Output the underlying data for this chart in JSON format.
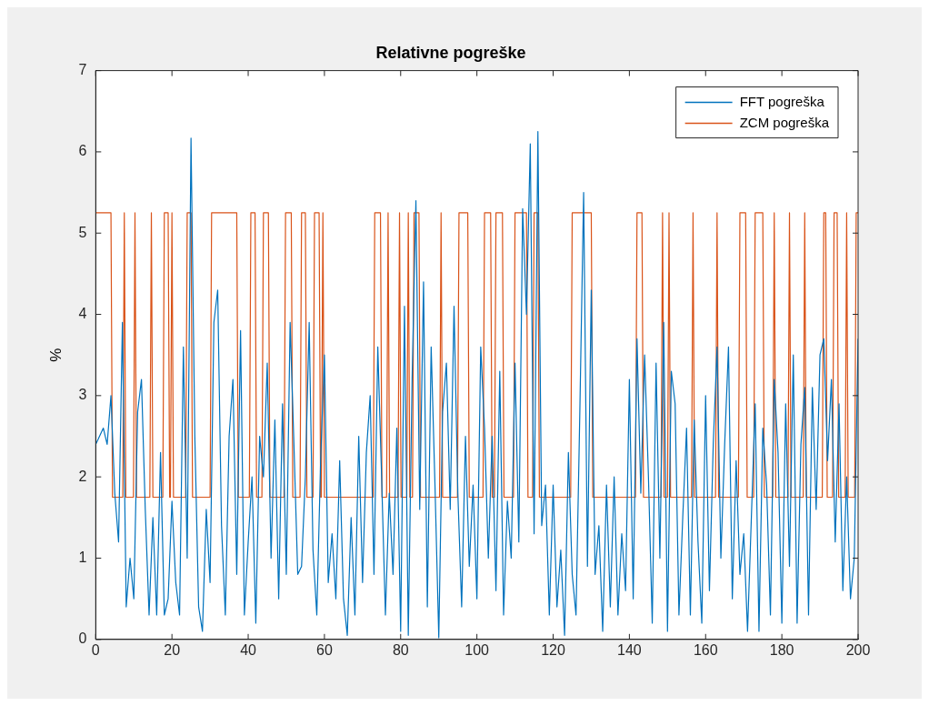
{
  "chart_data": {
    "type": "line",
    "title": "Relativne pogreške",
    "ylabel": "%",
    "xlim": [
      0,
      200
    ],
    "ylim": [
      0,
      7
    ],
    "xticks": [
      0,
      20,
      40,
      60,
      80,
      100,
      120,
      140,
      160,
      180,
      200
    ],
    "yticks": [
      0,
      1,
      2,
      3,
      4,
      5,
      6,
      7
    ],
    "grid": false,
    "legend": "top right",
    "marker": "none",
    "series": [
      {
        "name": "FFT pogreška",
        "color": "#0072bd",
        "x": [
          0,
          1,
          2,
          3,
          4,
          5,
          6,
          7,
          8,
          9,
          10,
          11,
          12,
          13,
          14,
          15,
          16,
          17,
          18,
          19,
          20,
          21,
          22,
          23,
          24,
          25,
          26,
          27,
          28,
          29,
          30,
          31,
          32,
          33,
          34,
          35,
          36,
          37,
          38,
          39,
          40,
          41,
          42,
          43,
          44,
          45,
          46,
          47,
          48,
          49,
          50,
          51,
          52,
          53,
          54,
          55,
          56,
          57,
          58,
          59,
          60,
          61,
          62,
          63,
          64,
          65,
          66,
          67,
          68,
          69,
          70,
          71,
          72,
          73,
          74,
          75,
          76,
          77,
          78,
          79,
          80,
          81,
          82,
          83,
          84,
          85,
          86,
          87,
          88,
          89,
          90,
          91,
          92,
          93,
          94,
          95,
          96,
          97,
          98,
          99,
          100,
          101,
          102,
          103,
          104,
          105,
          106,
          107,
          108,
          109,
          110,
          111,
          112,
          113,
          114,
          115,
          116,
          117,
          118,
          119,
          120,
          121,
          122,
          123,
          124,
          125,
          126,
          127,
          128,
          129,
          130,
          131,
          132,
          133,
          134,
          135,
          136,
          137,
          138,
          139,
          140,
          141,
          142,
          143,
          144,
          145,
          146,
          147,
          148,
          149,
          150,
          151,
          152,
          153,
          154,
          155,
          156,
          157,
          158,
          159,
          160,
          161,
          162,
          163,
          164,
          165,
          166,
          167,
          168,
          169,
          170,
          171,
          172,
          173,
          174,
          175,
          176,
          177,
          178,
          179,
          180,
          181,
          182,
          183,
          184,
          185,
          186,
          187,
          188,
          189,
          190,
          191,
          192,
          193,
          194,
          195,
          196,
          197,
          198,
          199,
          200
        ],
        "values": [
          2.4,
          2.5,
          2.6,
          2.4,
          3.0,
          1.8,
          1.2,
          3.9,
          0.4,
          1.0,
          0.5,
          2.8,
          3.2,
          1.6,
          0.3,
          1.5,
          0.3,
          2.3,
          0.3,
          0.5,
          1.7,
          0.7,
          0.3,
          3.6,
          1.0,
          6.17,
          2.5,
          0.4,
          0.1,
          1.6,
          0.7,
          3.9,
          4.3,
          1.4,
          0.3,
          2.5,
          3.2,
          0.8,
          3.8,
          0.3,
          1.2,
          2.0,
          0.2,
          2.5,
          2.0,
          3.4,
          1.0,
          2.7,
          0.5,
          2.9,
          0.8,
          3.9,
          2.4,
          0.8,
          0.9,
          2.0,
          3.9,
          1.1,
          0.3,
          2.2,
          3.5,
          0.7,
          1.3,
          0.5,
          2.2,
          0.5,
          0.05,
          1.5,
          0.3,
          2.5,
          0.7,
          2.3,
          3.0,
          0.8,
          3.6,
          2.0,
          0.3,
          1.8,
          0.8,
          2.6,
          0.1,
          4.1,
          0.05,
          3.2,
          5.4,
          1.6,
          4.4,
          0.4,
          3.6,
          1.9,
          0.02,
          2.8,
          3.4,
          1.6,
          4.1,
          1.8,
          0.4,
          2.5,
          0.9,
          1.9,
          0.5,
          3.6,
          2.6,
          1.0,
          2.5,
          0.6,
          3.3,
          0.3,
          1.7,
          1.0,
          3.4,
          1.2,
          5.3,
          4.0,
          6.1,
          1.3,
          6.25,
          1.4,
          1.9,
          0.3,
          1.9,
          0.4,
          1.1,
          0.05,
          2.3,
          0.8,
          0.3,
          2.8,
          5.5,
          0.9,
          4.3,
          0.8,
          1.4,
          0.1,
          1.9,
          0.4,
          2.0,
          0.3,
          1.3,
          0.6,
          3.2,
          0.5,
          3.7,
          1.8,
          3.5,
          2.0,
          0.2,
          3.4,
          1.0,
          3.9,
          0.1,
          3.3,
          2.9,
          0.3,
          1.5,
          2.6,
          0.3,
          2.7,
          1.2,
          0.2,
          3.0,
          0.6,
          2.4,
          3.6,
          1.0,
          2.4,
          3.6,
          0.5,
          2.2,
          0.8,
          1.3,
          0.1,
          1.5,
          2.9,
          0.1,
          2.6,
          1.9,
          0.3,
          3.2,
          2.3,
          0.2,
          2.9,
          0.9,
          3.5,
          0.2,
          2.4,
          3.1,
          0.3,
          3.1,
          1.6,
          3.5,
          3.7,
          2.2,
          3.2,
          1.2,
          2.9,
          0.6,
          2.0,
          0.5,
          1.0,
          3.7
        ]
      },
      {
        "name": "ZCM pogreška",
        "color": "#d95319",
        "x": [
          0,
          4,
          4.4,
          7.1,
          7.5,
          7.9,
          9.9,
          10.3,
          10.7,
          14.2,
          14.6,
          15,
          17.6,
          18,
          19,
          19.4,
          19.6,
          20,
          20.4,
          23.6,
          24,
          25,
          25.4,
          30,
          30.4,
          37,
          37.4,
          40.3,
          40.7,
          41.8,
          42.2,
          43.6,
          44,
          45.3,
          45.7,
          49.4,
          49.8,
          51.3,
          51.7,
          53.6,
          54,
          55,
          55.4,
          57,
          57.4,
          58.6,
          59,
          59.2,
          59.6,
          60,
          72.8,
          73.2,
          74.7,
          75.1,
          76.3,
          76.7,
          77.1,
          79.3,
          79.7,
          80.1,
          81.6,
          82,
          82.4,
          83.1,
          83.5,
          84.8,
          85.2,
          90.2,
          90.6,
          91,
          94.9,
          95.3,
          97.6,
          98,
          101.6,
          102,
          103.6,
          104,
          104.6,
          105,
          106.7,
          107.1,
          109.6,
          110,
          113,
          113.4,
          114.6,
          115,
          116,
          116.4,
          124.6,
          125,
          130,
          130.4,
          141.6,
          142,
          143.3,
          143.7,
          148.3,
          148.7,
          149.1,
          150,
          150.4,
          150.8,
          156.3,
          156.7,
          157.1,
          162.6,
          163,
          163.4,
          168.6,
          169,
          170.5,
          170.9,
          172.6,
          173,
          175,
          175.4,
          177.6,
          178,
          178.4,
          181.6,
          182,
          182.4,
          185.6,
          186,
          186.4,
          190.6,
          191,
          191.5,
          191.9,
          193.3,
          193.7,
          194.5,
          194.9,
          196.6,
          197,
          197.4,
          199.1,
          199.5,
          200
        ],
        "values": [
          5.25,
          5.25,
          1.75,
          1.75,
          5.25,
          1.75,
          1.75,
          5.25,
          1.75,
          1.75,
          5.25,
          1.75,
          1.75,
          5.25,
          5.25,
          1.75,
          1.75,
          5.25,
          1.75,
          1.75,
          5.25,
          5.25,
          1.75,
          1.75,
          5.25,
          5.25,
          1.75,
          1.75,
          5.25,
          5.25,
          1.75,
          1.75,
          5.25,
          5.25,
          1.75,
          1.75,
          5.25,
          5.25,
          1.75,
          1.75,
          5.25,
          5.25,
          1.75,
          1.75,
          5.25,
          5.25,
          1.75,
          1.75,
          5.25,
          1.75,
          1.75,
          5.25,
          5.25,
          1.75,
          1.75,
          5.25,
          1.75,
          1.75,
          5.25,
          1.75,
          1.75,
          5.25,
          1.75,
          1.75,
          5.25,
          5.25,
          1.75,
          1.75,
          5.25,
          1.75,
          1.75,
          5.25,
          5.25,
          1.75,
          1.75,
          5.25,
          5.25,
          1.75,
          1.75,
          5.25,
          5.25,
          1.75,
          1.75,
          5.25,
          5.25,
          1.75,
          1.75,
          5.25,
          5.25,
          1.75,
          1.75,
          5.25,
          5.25,
          1.75,
          1.75,
          5.25,
          5.25,
          1.75,
          1.75,
          5.25,
          1.75,
          1.75,
          5.25,
          1.75,
          1.75,
          5.25,
          1.75,
          1.75,
          5.25,
          1.75,
          1.75,
          5.25,
          5.25,
          1.75,
          1.75,
          5.25,
          5.25,
          1.75,
          1.75,
          5.25,
          1.75,
          1.75,
          5.25,
          1.75,
          1.75,
          5.25,
          1.75,
          1.75,
          5.25,
          5.25,
          1.75,
          1.75,
          5.25,
          5.25,
          1.75,
          1.75,
          5.25,
          1.75,
          1.75,
          5.25,
          5.25
        ]
      }
    ]
  }
}
